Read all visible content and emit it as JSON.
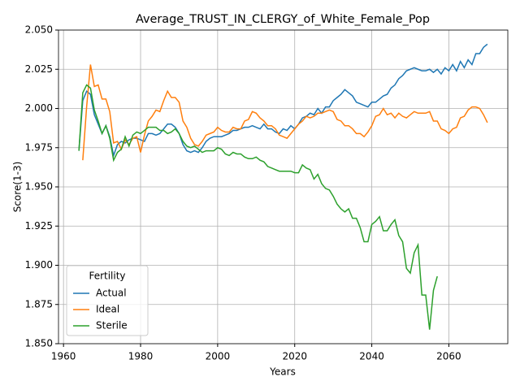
{
  "chart_data": {
    "type": "line",
    "title": "Average_TRUST_IN_CLERGY_of_White_Female_Pop",
    "x_label": "Years",
    "y_label": "Score(1-3)",
    "legend_title": "Fertility",
    "legend_position": "lower left",
    "grid": true,
    "x": [
      1964,
      1965,
      1966,
      1967,
      1968,
      1969,
      1970,
      1971,
      1972,
      1973,
      1974,
      1975,
      1976,
      1977,
      1978,
      1979,
      1980,
      1981,
      1982,
      1983,
      1984,
      1985,
      1986,
      1987,
      1988,
      1989,
      1990,
      1991,
      1992,
      1993,
      1994,
      1995,
      1996,
      1997,
      1998,
      1999,
      2000,
      2001,
      2002,
      2003,
      2004,
      2005,
      2006,
      2007,
      2008,
      2009,
      2010,
      2011,
      2012,
      2013,
      2014,
      2015,
      2016,
      2017,
      2018,
      2019,
      2020,
      2021,
      2022,
      2023,
      2024,
      2025,
      2026,
      2027,
      2028,
      2029,
      2030,
      2031,
      2032,
      2033,
      2034,
      2035,
      2036,
      2037,
      2038,
      2039,
      2040,
      2041,
      2042,
      2043,
      2044,
      2045,
      2046,
      2047,
      2048,
      2049,
      2050,
      2051,
      2052,
      2053,
      2054,
      2055,
      2056,
      2057,
      2058,
      2059,
      2060,
      2061,
      2062,
      2063,
      2064,
      2065,
      2066,
      2067,
      2068,
      2069,
      2070
    ],
    "series": [
      {
        "name": "Actual",
        "color": "#1f77b4",
        "values": [
          1.973,
          2.005,
          2.011,
          2.009,
          1.996,
          1.99,
          1.984,
          1.989,
          1.982,
          1.97,
          1.977,
          1.979,
          1.978,
          1.98,
          1.981,
          1.981,
          1.98,
          1.979,
          1.984,
          1.984,
          1.983,
          1.984,
          1.987,
          1.99,
          1.99,
          1.988,
          1.984,
          1.977,
          1.973,
          1.972,
          1.973,
          1.972,
          1.975,
          1.979,
          1.981,
          1.982,
          1.982,
          1.982,
          1.983,
          1.984,
          1.986,
          1.986,
          1.987,
          1.988,
          1.988,
          1.989,
          1.988,
          1.987,
          1.99,
          1.987,
          1.987,
          1.985,
          1.984,
          1.987,
          1.986,
          1.989,
          1.987,
          1.99,
          1.994,
          1.995,
          1.997,
          1.996,
          2.0,
          1.997,
          2.001,
          2.001,
          2.005,
          2.007,
          2.009,
          2.012,
          2.01,
          2.008,
          2.004,
          2.003,
          2.002,
          2.001,
          2.004,
          2.004,
          2.006,
          2.008,
          2.009,
          2.013,
          2.015,
          2.019,
          2.021,
          2.024,
          2.025,
          2.026,
          2.025,
          2.024,
          2.024,
          2.025,
          2.023,
          2.025,
          2.022,
          2.026,
          2.024,
          2.028,
          2.024,
          2.03,
          2.026,
          2.031,
          2.028,
          2.035,
          2.035,
          2.039,
          2.041
        ]
      },
      {
        "name": "Ideal",
        "color": "#ff7f0e",
        "values": [
          null,
          1.967,
          2.001,
          2.028,
          2.014,
          2.015,
          2.006,
          2.006,
          1.998,
          1.978,
          1.979,
          1.974,
          1.98,
          1.977,
          1.981,
          1.982,
          1.972,
          1.983,
          1.992,
          1.995,
          1.999,
          1.998,
          2.005,
          2.011,
          2.007,
          2.007,
          2.004,
          1.992,
          1.988,
          1.981,
          1.977,
          1.976,
          1.979,
          1.983,
          1.984,
          1.985,
          1.988,
          1.986,
          1.985,
          1.985,
          1.988,
          1.987,
          1.987,
          1.992,
          1.993,
          1.998,
          1.997,
          1.994,
          1.992,
          1.989,
          1.989,
          1.987,
          1.983,
          1.982,
          1.981,
          1.984,
          1.987,
          1.99,
          1.992,
          1.995,
          1.994,
          1.995,
          1.997,
          1.997,
          1.998,
          1.999,
          1.998,
          1.993,
          1.992,
          1.989,
          1.989,
          1.987,
          1.984,
          1.984,
          1.982,
          1.985,
          1.989,
          1.995,
          1.996,
          2.0,
          1.996,
          1.997,
          1.994,
          1.997,
          1.995,
          1.994,
          1.996,
          1.998,
          1.997,
          1.997,
          1.997,
          1.998,
          1.992,
          1.992,
          1.987,
          1.986,
          1.984,
          1.987,
          1.988,
          1.994,
          1.995,
          1.999,
          2.001,
          2.001,
          2.0,
          1.996,
          1.991
        ]
      },
      {
        "name": "Sterile",
        "color": "#2ca02c",
        "values": [
          1.973,
          2.01,
          2.015,
          2.013,
          1.999,
          1.992,
          1.984,
          1.989,
          1.981,
          1.967,
          1.972,
          1.974,
          1.982,
          1.976,
          1.983,
          1.985,
          1.984,
          1.986,
          1.988,
          1.988,
          1.988,
          1.986,
          1.986,
          1.984,
          1.985,
          1.987,
          1.984,
          1.979,
          1.976,
          1.975,
          1.976,
          1.974,
          1.972,
          1.973,
          1.973,
          1.973,
          1.975,
          1.974,
          1.971,
          1.97,
          1.972,
          1.971,
          1.971,
          1.969,
          1.968,
          1.968,
          1.969,
          1.967,
          1.966,
          1.963,
          1.962,
          1.961,
          1.96,
          1.96,
          1.96,
          1.96,
          1.959,
          1.959,
          1.964,
          1.962,
          1.961,
          1.955,
          1.958,
          1.952,
          1.949,
          1.948,
          1.944,
          1.939,
          1.936,
          1.934,
          1.936,
          1.93,
          1.93,
          1.924,
          1.915,
          1.915,
          1.926,
          1.928,
          1.931,
          1.922,
          1.922,
          1.926,
          1.929,
          1.919,
          1.915,
          1.898,
          1.895,
          1.908,
          1.913,
          1.881,
          1.881,
          1.859,
          1.884,
          1.893,
          null,
          null,
          null,
          null,
          null,
          null,
          null,
          null,
          null,
          null,
          null,
          null,
          null
        ]
      }
    ],
    "xlim": [
      1958.7,
      2075.3
    ],
    "xticks": [
      1960,
      1980,
      2000,
      2020,
      2040,
      2060
    ],
    "ylim": [
      1.85,
      2.05
    ],
    "yticks": [
      {
        "value": 1.85,
        "label": "1.850"
      },
      {
        "value": 1.875,
        "label": "1.875"
      },
      {
        "value": 1.9,
        "label": "1.900"
      },
      {
        "value": 1.925,
        "label": "1.925"
      },
      {
        "value": 1.95,
        "label": "1.950"
      },
      {
        "value": 1.975,
        "label": "1.975"
      },
      {
        "value": 2.0,
        "label": "2.000"
      },
      {
        "value": 2.025,
        "label": "2.025"
      },
      {
        "value": 2.05,
        "label": "2.050"
      }
    ]
  }
}
